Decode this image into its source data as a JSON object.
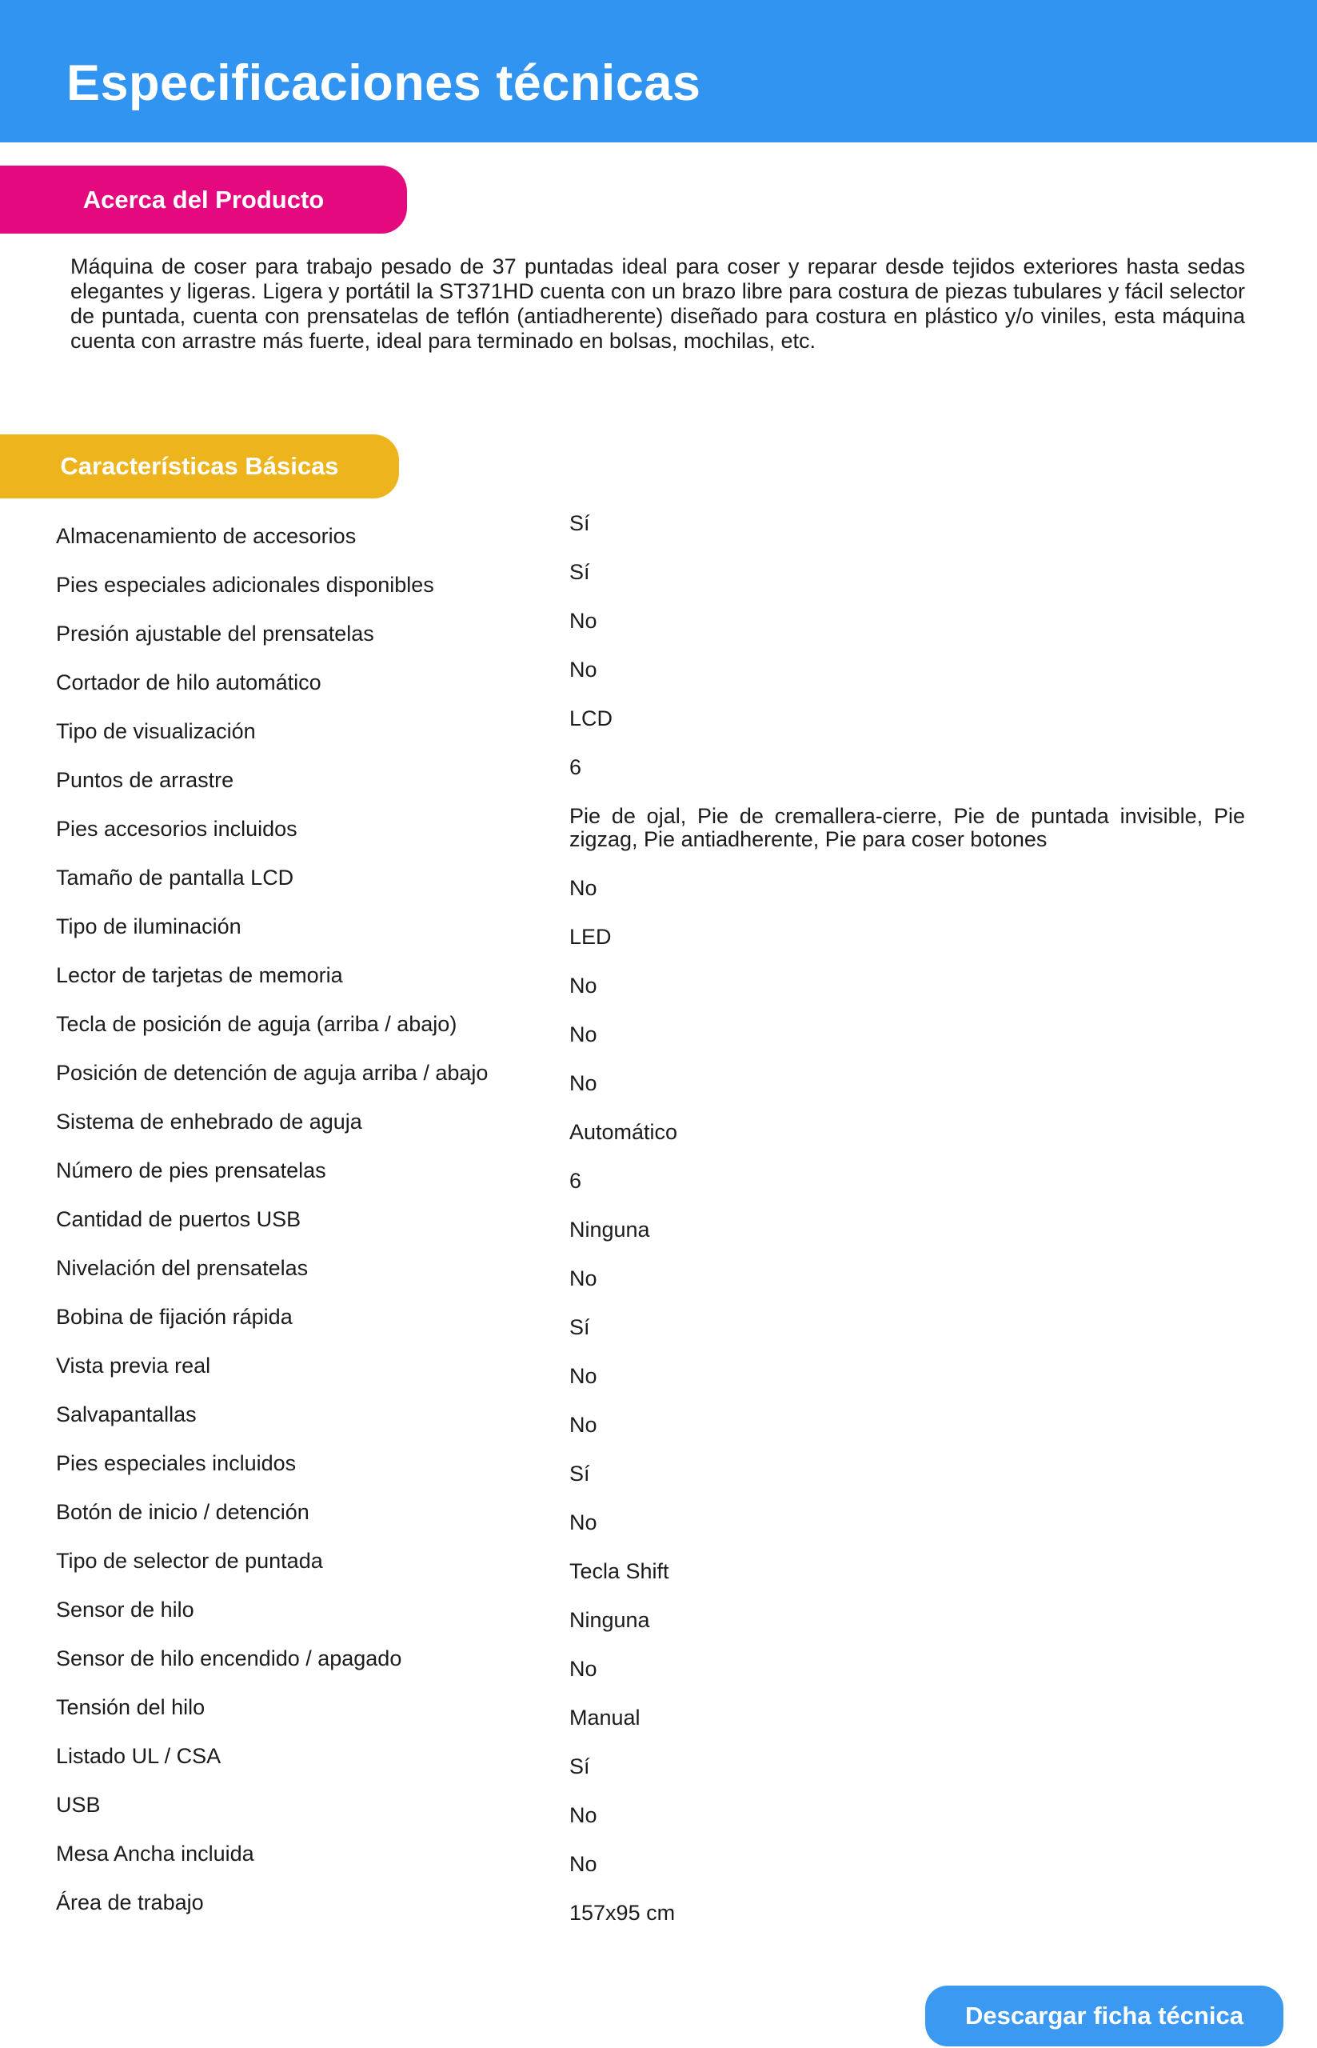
{
  "header": {
    "title": "Especificaciones técnicas"
  },
  "about": {
    "badge": "Acerca del Producto",
    "description": "Máquina de coser para trabajo pesado de 37 puntadas ideal para coser y reparar desde tejidos exteriores hasta sedas elegantes y ligeras. Ligera y portátil la ST371HD cuenta con un brazo libre para costura de piezas tubulares y fácil selector de puntada, cuenta con prensatelas de teflón (antiadherente) diseñado para costura en plástico y/o viniles, esta máquina cuenta con arrastre más fuerte, ideal para terminado en bolsas, mochilas, etc."
  },
  "specs": {
    "badge": "Características Básicas",
    "rows": [
      {
        "label": "Almacenamiento de accesorios",
        "value": "Sí"
      },
      {
        "label": "Pies especiales adicionales disponibles",
        "value": "Sí"
      },
      {
        "label": "Presión ajustable del prensatelas",
        "value": "No"
      },
      {
        "label": "Cortador de hilo automático",
        "value": "No"
      },
      {
        "label": "Tipo de visualización",
        "value": "LCD"
      },
      {
        "label": "Puntos de arrastre",
        "value": "6"
      },
      {
        "label": "Pies accesorios incluidos",
        "value": "Pie de ojal, Pie de cremallera-cierre, Pie de puntada invisible, Pie zigzag, Pie antiadherente, Pie para coser botones"
      },
      {
        "label": "Tamaño de pantalla LCD",
        "value": "No"
      },
      {
        "label": "Tipo de iluminación",
        "value": "LED"
      },
      {
        "label": "Lector de tarjetas de memoria",
        "value": "No"
      },
      {
        "label": "Tecla de posición de aguja (arriba / abajo)",
        "value": "No"
      },
      {
        "label": "Posición de detención de aguja arriba / abajo",
        "value": "No"
      },
      {
        "label": "Sistema de enhebrado de aguja",
        "value": "Automático"
      },
      {
        "label": "Número de pies prensatelas",
        "value": "6"
      },
      {
        "label": "Cantidad de puertos USB",
        "value": "Ninguna"
      },
      {
        "label": "Nivelación del prensatelas",
        "value": "No"
      },
      {
        "label": "Bobina de fijación rápida",
        "value": "Sí"
      },
      {
        "label": "Vista previa real",
        "value": "No"
      },
      {
        "label": "Salvapantallas",
        "value": "No"
      },
      {
        "label": "Pies especiales incluidos",
        "value": "Sí"
      },
      {
        "label": "Botón de inicio / detención",
        "value": "No"
      },
      {
        "label": "Tipo de selector de puntada",
        "value": "Tecla Shift"
      },
      {
        "label": "Sensor de hilo",
        "value": "Ninguna"
      },
      {
        "label": "Sensor de hilo encendido / apagado",
        "value": "No"
      },
      {
        "label": "Tensión del hilo",
        "value": "Manual"
      },
      {
        "label": "Listado UL / CSA",
        "value": "Sí"
      },
      {
        "label": "USB",
        "value": "No"
      },
      {
        "label": "Mesa Ancha incluida",
        "value": "No"
      },
      {
        "label": "Área de trabajo",
        "value": "157x95 cm"
      }
    ]
  },
  "footer": {
    "download_label": "Descargar ficha técnica"
  },
  "colors": {
    "header_blue": "#3094F0",
    "badge_pink": "#E5097F",
    "badge_yellow": "#EDB41E",
    "button_blue": "#3C99F2",
    "text_dark": "#1c1c1c"
  }
}
